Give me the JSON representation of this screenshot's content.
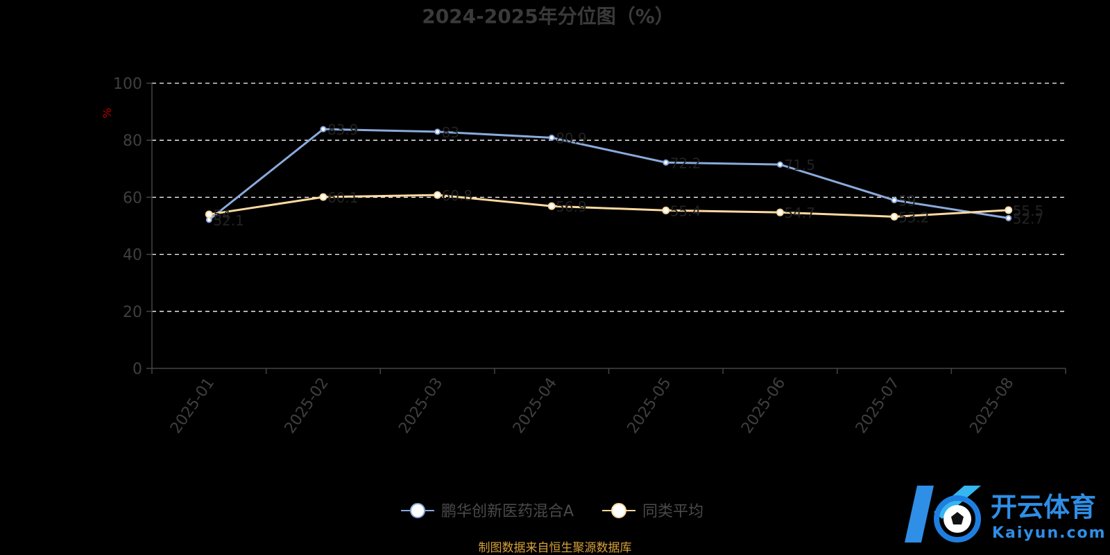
{
  "chart_data": {
    "type": "line",
    "title": "2024-2025年分位图（%）",
    "ylabel": "%",
    "xlabel": "",
    "categories": [
      "2025-01",
      "2025-02",
      "2025-03",
      "2025-04",
      "2025-05",
      "2025-06",
      "2025-07",
      "2025-08"
    ],
    "ylim": [
      0,
      100
    ],
    "yticks": [
      0,
      20,
      40,
      60,
      80,
      100
    ],
    "grid": true,
    "legend_position": "bottom",
    "series": [
      {
        "name": "鹏华创新医药混合A",
        "color": "#8aaadc",
        "values": [
          52.1,
          83.9,
          83.0,
          80.9,
          72.2,
          71.5,
          59.0,
          52.7
        ]
      },
      {
        "name": "同类平均",
        "color": "#fcd9a0",
        "values": [
          54.0,
          60.1,
          60.8,
          56.9,
          55.4,
          54.7,
          53.2,
          55.5
        ]
      }
    ]
  },
  "footer": "制图数据来自恒生聚源数据库",
  "watermark": {
    "cn": "开云体育",
    "en": "Kaiyun.com"
  }
}
